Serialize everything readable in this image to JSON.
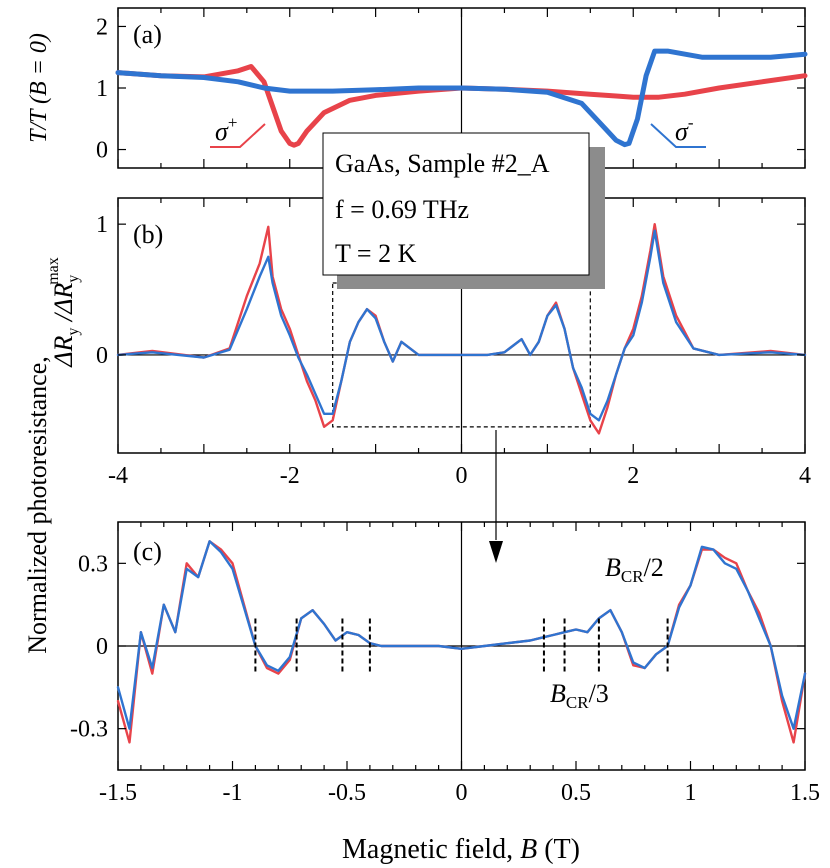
{
  "colors": {
    "red": "#e8434a",
    "blue": "#2f74d0",
    "axis": "#000000",
    "shadow": "#8c8c8c"
  },
  "labels": {
    "panel_a": "(a)",
    "panel_b": "(b)",
    "panel_c": "(c)",
    "ylabel_a": "T/T (B = 0)",
    "ylabel_bc_main": "Normalized photoresistance,",
    "ylabel_bc_ratio": "ΔR_y /ΔR_y^max",
    "xlabel": "Magnetic field, B (T)",
    "sigma_plus": "σ+",
    "sigma_minus": "σ-",
    "bcr_half": "B_CR/2",
    "bcr_third": "B_CR/3",
    "info_line1": "GaAs, Sample #2_A",
    "info_line2": "f = 0.69 THz",
    "info_line3": "T = 2 K"
  },
  "chart_data": [
    {
      "panel": "(a)",
      "type": "line",
      "ylabel": "T/T (B = 0)",
      "xlim": [
        -4,
        4
      ],
      "ylim": [
        -0.3,
        2.3
      ],
      "yticks": [
        "0",
        "1",
        "2"
      ],
      "series": [
        {
          "name": "σ+",
          "color": "#e8434a",
          "x": [
            -4,
            -3.5,
            -3,
            -2.6,
            -2.45,
            -2.3,
            -2.2,
            -2.1,
            -2.0,
            -1.95,
            -1.9,
            -1.8,
            -1.6,
            -1.3,
            -1.0,
            -0.5,
            0,
            0.5,
            1.0,
            1.5,
            1.8,
            2.0,
            2.3,
            2.6,
            3.0,
            3.5,
            4.0
          ],
          "y": [
            1.25,
            1.2,
            1.18,
            1.28,
            1.35,
            1.1,
            0.7,
            0.3,
            0.1,
            0.07,
            0.1,
            0.3,
            0.6,
            0.8,
            0.88,
            0.95,
            1.0,
            0.98,
            0.95,
            0.9,
            0.87,
            0.85,
            0.85,
            0.9,
            1.0,
            1.1,
            1.2
          ]
        },
        {
          "name": "σ-",
          "color": "#2f74d0",
          "x": [
            -4,
            -3.5,
            -3,
            -2.6,
            -2.3,
            -2.0,
            -1.5,
            -1.0,
            -0.5,
            0,
            0.5,
            1.0,
            1.4,
            1.6,
            1.8,
            1.9,
            1.95,
            2.05,
            2.15,
            2.25,
            2.4,
            2.8,
            3.2,
            3.6,
            4.0
          ],
          "y": [
            1.25,
            1.2,
            1.17,
            1.1,
            1.0,
            0.95,
            0.95,
            0.97,
            1.0,
            1.0,
            0.98,
            0.93,
            0.75,
            0.45,
            0.15,
            0.08,
            0.1,
            0.5,
            1.2,
            1.6,
            1.6,
            1.5,
            1.5,
            1.5,
            1.55
          ]
        }
      ]
    },
    {
      "panel": "(b)",
      "type": "line",
      "xlim": [
        -4,
        4
      ],
      "ylim": [
        -0.75,
        1.2
      ],
      "xticks": [
        "-4",
        "-2",
        "0",
        "2",
        "4"
      ],
      "yticks": [
        "0",
        "1"
      ],
      "inset_box": {
        "x": [
          -1.5,
          1.5
        ],
        "y": [
          -0.55,
          0.55
        ]
      },
      "series": [
        {
          "name": "σ+",
          "color": "#e8434a",
          "x": [
            -4.0,
            -3.6,
            -3.0,
            -2.7,
            -2.5,
            -2.35,
            -2.25,
            -2.2,
            -2.1,
            -2.0,
            -1.9,
            -1.8,
            -1.7,
            -1.6,
            -1.5,
            -1.4,
            -1.3,
            -1.2,
            -1.1,
            -1.0,
            -0.9,
            -0.8,
            -0.7,
            -0.5,
            -0.3,
            0.0,
            0.3,
            0.5,
            0.7,
            0.8,
            0.9,
            1.0,
            1.1,
            1.2,
            1.3,
            1.4,
            1.5,
            1.6,
            1.7,
            1.8,
            1.9,
            2.0,
            2.1,
            2.2,
            2.25,
            2.35,
            2.5,
            2.7,
            3.0,
            3.6,
            4.0
          ],
          "y": [
            0.0,
            0.03,
            -0.02,
            0.05,
            0.45,
            0.7,
            0.98,
            0.6,
            0.35,
            0.2,
            0.0,
            -0.2,
            -0.35,
            -0.55,
            -0.5,
            -0.2,
            0.1,
            0.25,
            0.35,
            0.3,
            0.1,
            -0.05,
            0.1,
            0.0,
            0.0,
            0.0,
            0.0,
            0.02,
            0.12,
            0.0,
            0.1,
            0.3,
            0.4,
            0.2,
            -0.1,
            -0.3,
            -0.5,
            -0.6,
            -0.4,
            -0.15,
            0.05,
            0.2,
            0.45,
            0.8,
            1.0,
            0.6,
            0.3,
            0.05,
            0.0,
            0.03,
            0.0
          ]
        },
        {
          "name": "σ-",
          "color": "#2f74d0",
          "x": [
            -4.0,
            -3.6,
            -3.0,
            -2.7,
            -2.5,
            -2.35,
            -2.25,
            -2.2,
            -2.1,
            -2.0,
            -1.9,
            -1.8,
            -1.7,
            -1.6,
            -1.5,
            -1.4,
            -1.3,
            -1.2,
            -1.1,
            -1.0,
            -0.9,
            -0.8,
            -0.7,
            -0.5,
            -0.3,
            0.0,
            0.3,
            0.5,
            0.7,
            0.8,
            0.9,
            1.0,
            1.1,
            1.2,
            1.3,
            1.4,
            1.5,
            1.6,
            1.7,
            1.8,
            1.9,
            2.0,
            2.1,
            2.2,
            2.25,
            2.35,
            2.5,
            2.7,
            3.0,
            3.6,
            4.0
          ],
          "y": [
            0.0,
            0.02,
            -0.02,
            0.04,
            0.35,
            0.6,
            0.75,
            0.55,
            0.3,
            0.15,
            -0.02,
            -0.15,
            -0.3,
            -0.45,
            -0.45,
            -0.2,
            0.1,
            0.25,
            0.35,
            0.28,
            0.1,
            -0.05,
            0.1,
            0.0,
            0.0,
            0.0,
            0.0,
            0.02,
            0.12,
            0.0,
            0.1,
            0.3,
            0.38,
            0.2,
            -0.1,
            -0.25,
            -0.45,
            -0.5,
            -0.35,
            -0.15,
            0.05,
            0.15,
            0.4,
            0.75,
            0.95,
            0.55,
            0.25,
            0.05,
            0.0,
            0.02,
            0.0
          ]
        }
      ]
    },
    {
      "panel": "(c)",
      "type": "line",
      "xlabel": "Magnetic field, B (T)",
      "xlim": [
        -1.5,
        1.5
      ],
      "ylim": [
        -0.45,
        0.45
      ],
      "xticks": [
        "-1.5",
        "-1",
        "-0.5",
        "0",
        "0.5",
        "1",
        "1.5"
      ],
      "yticks": [
        "0.3",
        "0",
        "-0.3"
      ],
      "markers_BCR_half": [
        -0.9,
        0.9
      ],
      "markers_BCR_third": [
        -0.72,
        -0.52,
        -0.4,
        0.36,
        0.45,
        0.6
      ],
      "series": [
        {
          "name": "σ+",
          "color": "#e8434a",
          "x": [
            -1.5,
            -1.45,
            -1.4,
            -1.35,
            -1.3,
            -1.25,
            -1.2,
            -1.15,
            -1.1,
            -1.05,
            -1.0,
            -0.95,
            -0.9,
            -0.85,
            -0.8,
            -0.75,
            -0.7,
            -0.65,
            -0.6,
            -0.55,
            -0.5,
            -0.45,
            -0.4,
            -0.35,
            -0.3,
            -0.2,
            -0.1,
            0.0,
            0.1,
            0.2,
            0.3,
            0.35,
            0.4,
            0.45,
            0.5,
            0.55,
            0.6,
            0.65,
            0.7,
            0.75,
            0.8,
            0.85,
            0.9,
            0.95,
            1.0,
            1.05,
            1.1,
            1.15,
            1.2,
            1.25,
            1.3,
            1.35,
            1.4,
            1.45,
            1.5
          ],
          "y": [
            -0.2,
            -0.35,
            0.05,
            -0.1,
            0.15,
            0.05,
            0.3,
            0.25,
            0.38,
            0.35,
            0.3,
            0.15,
            0.0,
            -0.08,
            -0.1,
            -0.05,
            0.1,
            0.13,
            0.08,
            0.02,
            0.05,
            0.04,
            0.01,
            0.0,
            0.0,
            0.0,
            0.0,
            -0.01,
            0.0,
            0.01,
            0.02,
            0.03,
            0.04,
            0.05,
            0.06,
            0.05,
            0.1,
            0.13,
            0.05,
            -0.07,
            -0.08,
            -0.03,
            0.0,
            0.15,
            0.22,
            0.35,
            0.35,
            0.32,
            0.3,
            0.2,
            0.12,
            0.0,
            -0.2,
            -0.35,
            -0.1
          ]
        },
        {
          "name": "σ-",
          "color": "#2f74d0",
          "x": [
            -1.5,
            -1.45,
            -1.4,
            -1.35,
            -1.3,
            -1.25,
            -1.2,
            -1.15,
            -1.1,
            -1.05,
            -1.0,
            -0.95,
            -0.9,
            -0.85,
            -0.8,
            -0.75,
            -0.7,
            -0.65,
            -0.6,
            -0.55,
            -0.5,
            -0.45,
            -0.4,
            -0.35,
            -0.3,
            -0.2,
            -0.1,
            0.0,
            0.1,
            0.2,
            0.3,
            0.35,
            0.4,
            0.45,
            0.5,
            0.55,
            0.6,
            0.65,
            0.7,
            0.75,
            0.8,
            0.85,
            0.9,
            0.95,
            1.0,
            1.05,
            1.1,
            1.15,
            1.2,
            1.25,
            1.3,
            1.35,
            1.4,
            1.45,
            1.5
          ],
          "y": [
            -0.15,
            -0.3,
            0.05,
            -0.08,
            0.15,
            0.05,
            0.28,
            0.25,
            0.38,
            0.34,
            0.28,
            0.14,
            0.0,
            -0.07,
            -0.09,
            -0.04,
            0.1,
            0.13,
            0.08,
            0.02,
            0.05,
            0.04,
            0.01,
            0.0,
            0.0,
            0.0,
            0.0,
            -0.01,
            0.0,
            0.01,
            0.02,
            0.03,
            0.04,
            0.05,
            0.06,
            0.05,
            0.1,
            0.13,
            0.05,
            -0.06,
            -0.08,
            -0.03,
            0.0,
            0.14,
            0.22,
            0.36,
            0.35,
            0.3,
            0.28,
            0.2,
            0.1,
            0.0,
            -0.18,
            -0.3,
            -0.1
          ]
        }
      ]
    }
  ]
}
